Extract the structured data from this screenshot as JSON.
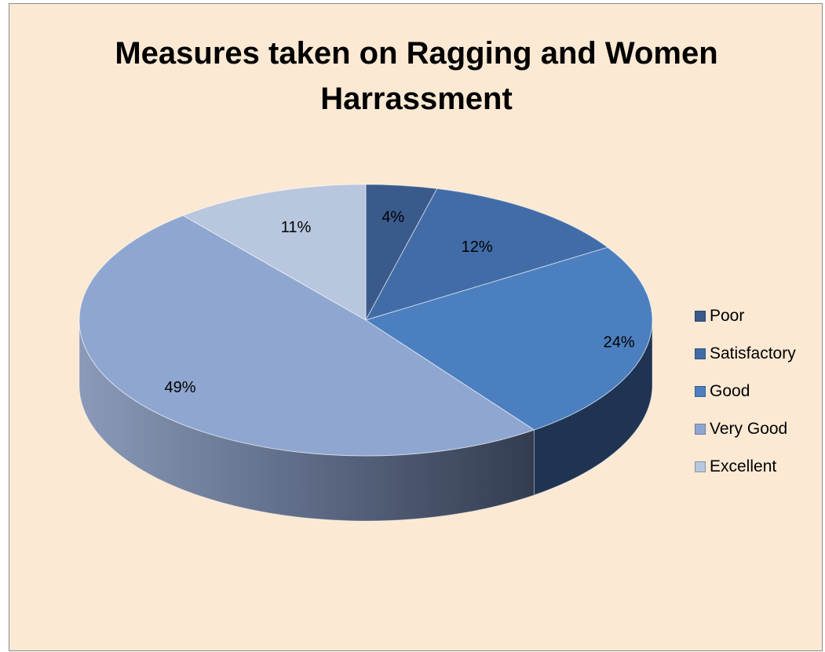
{
  "chart_data": {
    "type": "pie",
    "title_lines": [
      "Measures taken on Ragging and Women",
      "Harrassment"
    ],
    "categories": [
      "Poor",
      "Satisfactory",
      "Good",
      "Very Good",
      "Excellent"
    ],
    "values": [
      4,
      12,
      24,
      49,
      11
    ],
    "data_labels": [
      "4%",
      "12%",
      "24%",
      "49%",
      "11%"
    ],
    "colors": [
      "#3a5a8c",
      "#416ca7",
      "#4b7fbf",
      "#8fa7d0",
      "#b8c6de"
    ],
    "side_colors": [
      "#25385c",
      "#283f68",
      "#1f3353",
      "#3a4660",
      "#6d7d99"
    ],
    "legend_position": "right",
    "style": "3d-pie"
  }
}
